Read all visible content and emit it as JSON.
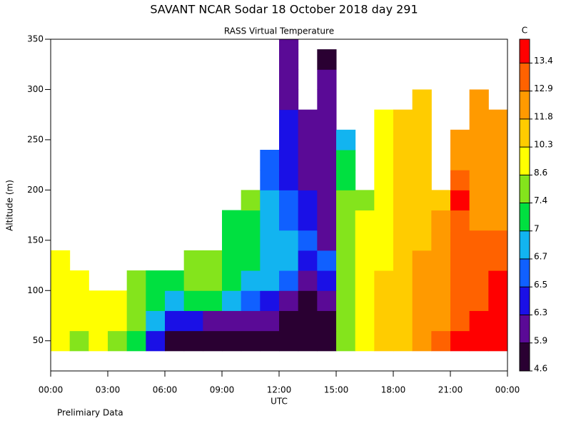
{
  "chart_data": {
    "type": "heatmap",
    "title": "SAVANT  NCAR Sodar  18 October 2018  day 291",
    "subtitle": "RASS Virtual Temperature",
    "ylabel": "Altitude (m)",
    "xlabel": "UTC",
    "footnote": "Prelimiary Data",
    "xlim": [
      0,
      24
    ],
    "xticks": [
      {
        "value": 0,
        "label": "00:00"
      },
      {
        "value": 3,
        "label": "03:00"
      },
      {
        "value": 6,
        "label": "06:00"
      },
      {
        "value": 9,
        "label": "09:00"
      },
      {
        "value": 12,
        "label": "12:00"
      },
      {
        "value": 15,
        "label": "15:00"
      },
      {
        "value": 18,
        "label": "18:00"
      },
      {
        "value": 21,
        "label": "21:00"
      },
      {
        "value": 24,
        "label": "00:00"
      }
    ],
    "ylim": [
      20,
      350
    ],
    "yticks": [
      50,
      100,
      150,
      200,
      250,
      300,
      350
    ],
    "x": [
      0.5,
      1.5,
      2.5,
      3.5,
      4.5,
      5.5,
      6.5,
      7.5,
      8.5,
      9.5,
      10.5,
      11.5,
      12.5,
      13.5,
      14.5,
      15.5,
      16.5,
      17.5,
      18.5,
      19.5,
      20.5,
      21.5,
      22.5,
      23.5
    ],
    "y": [
      50,
      70,
      90,
      110,
      130,
      150,
      170,
      190,
      210,
      230,
      250,
      270,
      290,
      310,
      330,
      350
    ],
    "values": [
      [
        9,
        8,
        9,
        8,
        7.2,
        6.4,
        5.5,
        5.5,
        5.0,
        5.0,
        5.0,
        5.0,
        5.0,
        5.0,
        5.0,
        8,
        9,
        10.5,
        11,
        12,
        13,
        13.5,
        13.5,
        13.5
      ],
      [
        9,
        9,
        9,
        9,
        7.6,
        6.8,
        6.4,
        6.4,
        6.2,
        6.0,
        6.0,
        5.9,
        5.5,
        5.0,
        5.0,
        8,
        9,
        10.5,
        11,
        12,
        12.5,
        13,
        13.5,
        13.5
      ],
      [
        9,
        9,
        9,
        9,
        7.6,
        7.2,
        6.8,
        7.2,
        7.2,
        6.8,
        6.6,
        6.4,
        6.2,
        5.5,
        6.0,
        8,
        9,
        10.5,
        11,
        12,
        12.5,
        13,
        13,
        13.5
      ],
      [
        9,
        9,
        null,
        null,
        7.6,
        7.2,
        7.2,
        7.6,
        7.6,
        7.2,
        6.8,
        6.8,
        6.6,
        6.2,
        6.4,
        8,
        9,
        10.5,
        11,
        12,
        12.5,
        13,
        13,
        13.5
      ],
      [
        9,
        null,
        null,
        null,
        null,
        null,
        null,
        7.6,
        7.6,
        7.2,
        7.2,
        6.8,
        6.8,
        6.4,
        6.5,
        8,
        9,
        9.5,
        11,
        12,
        12,
        13,
        13,
        13
      ],
      [
        null,
        null,
        null,
        null,
        null,
        null,
        null,
        null,
        null,
        7.2,
        7.2,
        6.8,
        6.8,
        6.5,
        6.2,
        8,
        9,
        9.5,
        10.5,
        11,
        12,
        13,
        13,
        13
      ],
      [
        null,
        null,
        null,
        null,
        null,
        null,
        null,
        null,
        null,
        7.2,
        7.2,
        6.8,
        6.6,
        6.4,
        6.0,
        7.5,
        9,
        9.5,
        10.5,
        11,
        12,
        13,
        12.5,
        12.5
      ],
      [
        null,
        null,
        null,
        null,
        null,
        null,
        null,
        null,
        null,
        null,
        7.6,
        6.8,
        6.5,
        6.4,
        6.0,
        8,
        8,
        9.5,
        10.5,
        11,
        11,
        13.5,
        12,
        12.5
      ],
      [
        null,
        null,
        null,
        null,
        null,
        null,
        null,
        null,
        null,
        null,
        null,
        6.6,
        6.4,
        6.0,
        6.0,
        7.2,
        null,
        9.5,
        10.5,
        11,
        null,
        13,
        12,
        12
      ],
      [
        null,
        null,
        null,
        null,
        null,
        null,
        null,
        null,
        null,
        null,
        null,
        6.5,
        6.4,
        6.0,
        6.0,
        7.0,
        null,
        9.5,
        10.5,
        11,
        null,
        12,
        12,
        12
      ],
      [
        null,
        null,
        null,
        null,
        null,
        null,
        null,
        null,
        null,
        null,
        null,
        null,
        6.4,
        6.0,
        6.0,
        6.7,
        null,
        9.5,
        10.5,
        11,
        null,
        12,
        12,
        12
      ],
      [
        null,
        null,
        null,
        null,
        null,
        null,
        null,
        null,
        null,
        null,
        null,
        null,
        6.4,
        6.0,
        6.0,
        null,
        null,
        9.5,
        10.5,
        11,
        null,
        null,
        12,
        12
      ],
      [
        null,
        null,
        null,
        null,
        null,
        null,
        null,
        null,
        null,
        null,
        null,
        null,
        6.2,
        null,
        6.0,
        null,
        null,
        null,
        null,
        10.5,
        null,
        null,
        12,
        null
      ],
      [
        null,
        null,
        null,
        null,
        null,
        null,
        null,
        null,
        null,
        null,
        null,
        null,
        6.2,
        null,
        6.0,
        null,
        null,
        null,
        null,
        null,
        null,
        null,
        null,
        null
      ],
      [
        null,
        null,
        null,
        null,
        null,
        null,
        null,
        null,
        null,
        null,
        null,
        null,
        6.0,
        null,
        5.5,
        null,
        null,
        null,
        null,
        null,
        null,
        null,
        null,
        null
      ],
      [
        null,
        null,
        null,
        null,
        null,
        null,
        null,
        null,
        null,
        null,
        null,
        null,
        6.0,
        null,
        null,
        null,
        null,
        null,
        null,
        null,
        null,
        null,
        null,
        null
      ]
    ],
    "colorbar": {
      "title": "C",
      "levels": [
        4.6,
        5.9,
        6.3,
        6.5,
        6.7,
        7.0,
        7.4,
        8.6,
        10.3,
        11.8,
        12.9,
        13.4
      ],
      "colors": [
        "#2a0032",
        "#5a0a96",
        "#1a10e6",
        "#1060ff",
        "#12b4f0",
        "#00e040",
        "#84e41c",
        "#ffff00",
        "#ffcc00",
        "#ff9a00",
        "#ff6200",
        "#ff0000"
      ]
    }
  }
}
